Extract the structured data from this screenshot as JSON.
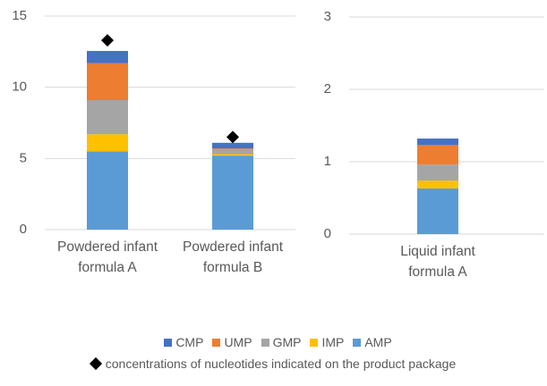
{
  "chart_data": [
    {
      "type": "bar",
      "stacked": true,
      "categories": [
        "Powdered infant formula A",
        "Powdered infant formula B"
      ],
      "series": [
        {
          "name": "CMP",
          "color": "#4472c4",
          "values": [
            0.85,
            0.4
          ]
        },
        {
          "name": "UMP",
          "color": "#ed7d31",
          "values": [
            2.6,
            0.1
          ]
        },
        {
          "name": "GMP",
          "color": "#a5a5a5",
          "values": [
            2.4,
            0.3
          ]
        },
        {
          "name": "IMP",
          "color": "#ffc000",
          "values": [
            1.2,
            0.1
          ]
        },
        {
          "name": "AMP",
          "color": "#5b9bd5",
          "values": [
            5.5,
            5.2
          ]
        }
      ],
      "overlay": {
        "name": "concentrations of nucleotides indicated on the product package",
        "color": "#000000",
        "marker": "diamond",
        "values": [
          13.3,
          6.5
        ]
      },
      "ylim": [
        0,
        15
      ],
      "yticks": [
        0,
        5,
        10,
        15
      ],
      "grid": true
    },
    {
      "type": "bar",
      "stacked": true,
      "categories": [
        "Liquid infant formula A"
      ],
      "series": [
        {
          "name": "CMP",
          "color": "#4472c4",
          "values": [
            0.09
          ]
        },
        {
          "name": "UMP",
          "color": "#ed7d31",
          "values": [
            0.27
          ]
        },
        {
          "name": "GMP",
          "color": "#a5a5a5",
          "values": [
            0.22
          ]
        },
        {
          "name": "IMP",
          "color": "#ffc000",
          "values": [
            0.11
          ]
        },
        {
          "name": "AMP",
          "color": "#5b9bd5",
          "values": [
            0.63
          ]
        }
      ],
      "ylim": [
        0,
        3
      ],
      "yticks": [
        0,
        1,
        2,
        3
      ],
      "grid": true
    }
  ]
}
